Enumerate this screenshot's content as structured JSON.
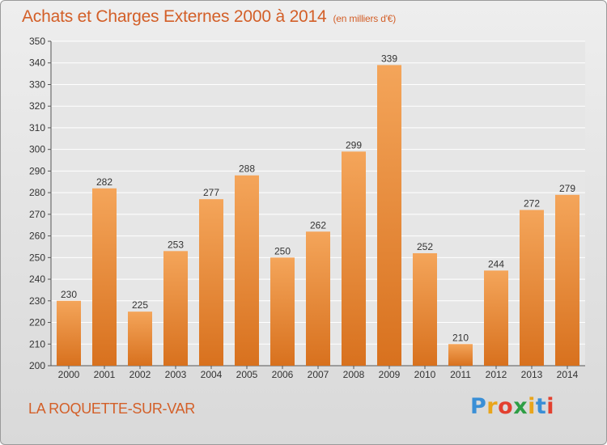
{
  "title": "Achats et Charges Externes 2000 à 2014",
  "subtitle": "(en milliers d'€)",
  "place": "LA ROQUETTE-SUR-VAR",
  "logo": {
    "letters": [
      "P",
      "r",
      "o",
      "x",
      "i",
      "t",
      "i"
    ],
    "colors": [
      "#3a8fd6",
      "#e9a51b",
      "#e3402f",
      "#2e9e45",
      "#e9a51b",
      "#3a8fd6",
      "#e3402f"
    ]
  },
  "colors": {
    "bar_top": "#f4a55a",
    "bar_bottom": "#d8711e",
    "title": "#d35f28"
  },
  "chart_data": {
    "type": "bar",
    "categories": [
      "2000",
      "2001",
      "2002",
      "2003",
      "2004",
      "2005",
      "2006",
      "2007",
      "2008",
      "2009",
      "2010",
      "2011",
      "2012",
      "2013",
      "2014"
    ],
    "values": [
      230,
      282,
      225,
      253,
      277,
      288,
      250,
      262,
      299,
      339,
      252,
      210,
      244,
      272,
      279
    ],
    "title": "Achats et Charges Externes 2000 à 2014",
    "xlabel": "",
    "ylabel": "",
    "ylim": [
      200,
      350
    ],
    "yticks": [
      200,
      210,
      220,
      230,
      240,
      250,
      260,
      270,
      280,
      290,
      300,
      310,
      320,
      330,
      340,
      350
    ],
    "grid": true
  }
}
